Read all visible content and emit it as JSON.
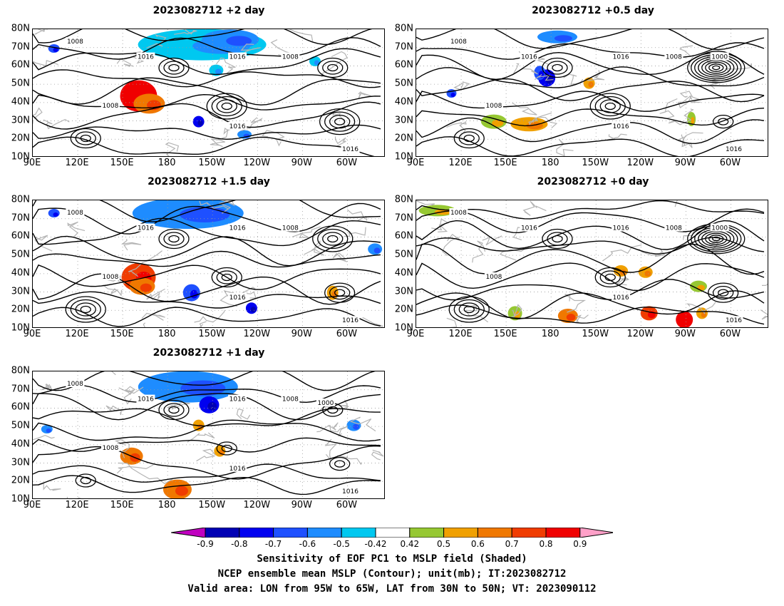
{
  "panels": [
    {
      "title": "2023082712 +2 day"
    },
    {
      "title": "2023082712 +0.5 day"
    },
    {
      "title": "2023082712 +1.5 day"
    },
    {
      "title": "2023082712 +0 day"
    },
    {
      "title": "2023082712 +1 day"
    }
  ],
  "lat_labels": [
    "80N",
    "70N",
    "60N",
    "50N",
    "40N",
    "30N",
    "20N",
    "10N"
  ],
  "lon_labels": [
    "90E",
    "120E",
    "150E",
    "180",
    "150W",
    "120W",
    "90W",
    "60W"
  ],
  "contour_labels": [
    "1008",
    "1016",
    "1000"
  ],
  "colorbar": {
    "levels": [
      "-0.9",
      "-0.8",
      "-0.7",
      "-0.6",
      "-0.5",
      "-0.42",
      "0.42",
      "0.5",
      "0.6",
      "0.7",
      "0.8",
      "0.9"
    ],
    "colors": [
      "#c000c0",
      "#0000b4",
      "#0000f0",
      "#1e50ff",
      "#1e8cff",
      "#00c8f0",
      "#ffffff",
      "#96c832",
      "#f0a000",
      "#f07800",
      "#f03c00",
      "#f00000",
      "#ffa0c8"
    ]
  },
  "caption": {
    "line1": "Sensitivity of EOF PC1 to MSLP field (Shaded)",
    "line2": "NCEP ensemble mean MSLP (Contour); unit(mb); IT:2023082712",
    "line3": "Valid area: LON from 95W to 65W, LAT from 30N to 50N; VT: 2023090112"
  }
}
